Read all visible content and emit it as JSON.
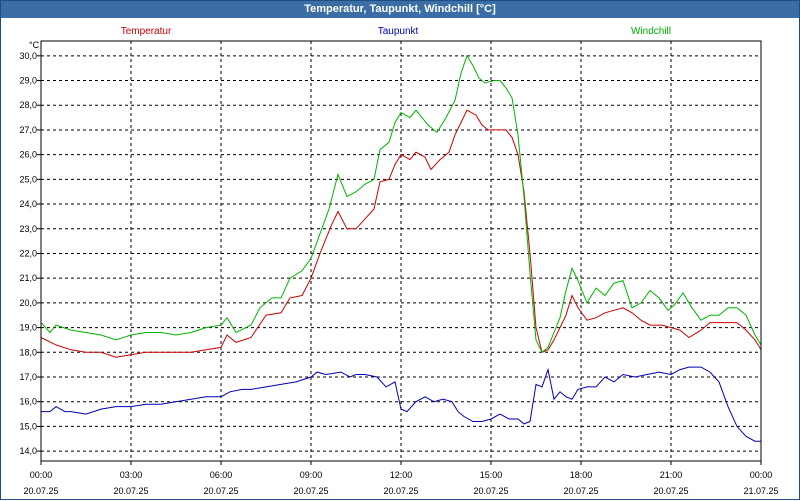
{
  "window": {
    "title": "Temperatur, Taupunkt, Windchill [°C]"
  },
  "chart_data": {
    "type": "line",
    "title": "Temperatur, Taupunkt, Windchill [°C]",
    "ylabel": "°C",
    "ylim": [
      13.6,
      30.6
    ],
    "yticks": [
      "14,0",
      "15,0",
      "16,0",
      "17,0",
      "18,0",
      "19,0",
      "20,0",
      "21,0",
      "22,0",
      "23,0",
      "24,0",
      "25,0",
      "26,0",
      "27,0",
      "28,0",
      "29,0",
      "30,0"
    ],
    "xlim": [
      0,
      24
    ],
    "xticks": [
      {
        "time": "00:00",
        "date": "20.07.25"
      },
      {
        "time": "03:00",
        "date": "20.07.25"
      },
      {
        "time": "06:00",
        "date": "20.07.25"
      },
      {
        "time": "09:00",
        "date": "20.07.25"
      },
      {
        "time": "12:00",
        "date": "20.07.25"
      },
      {
        "time": "15:00",
        "date": "20.07.25"
      },
      {
        "time": "18:00",
        "date": "20.07.25"
      },
      {
        "time": "21:00",
        "date": "20.07.25"
      },
      {
        "time": "00:00",
        "date": "21.07.25"
      }
    ],
    "grid": true,
    "series": [
      {
        "name": "Temperatur",
        "color": "#cc0000",
        "points": [
          [
            0,
            18.6
          ],
          [
            0.5,
            18.3
          ],
          [
            1,
            18.1
          ],
          [
            1.5,
            18.0
          ],
          [
            2,
            18.0
          ],
          [
            2.5,
            17.8
          ],
          [
            3,
            17.9
          ],
          [
            3.5,
            18.0
          ],
          [
            4,
            18.0
          ],
          [
            4.5,
            18.0
          ],
          [
            5,
            18.0
          ],
          [
            5.5,
            18.1
          ],
          [
            6,
            18.2
          ],
          [
            6.2,
            18.7
          ],
          [
            6.5,
            18.4
          ],
          [
            7,
            18.6
          ],
          [
            7.5,
            19.5
          ],
          [
            8,
            19.6
          ],
          [
            8.3,
            20.2
          ],
          [
            8.7,
            20.3
          ],
          [
            9,
            21.0
          ],
          [
            9.3,
            22.0
          ],
          [
            9.5,
            22.6
          ],
          [
            9.7,
            23.2
          ],
          [
            9.9,
            23.7
          ],
          [
            10.2,
            23.0
          ],
          [
            10.5,
            23.0
          ],
          [
            10.8,
            23.4
          ],
          [
            11.1,
            23.8
          ],
          [
            11.3,
            24.9
          ],
          [
            11.6,
            25.0
          ],
          [
            11.8,
            25.6
          ],
          [
            12.0,
            26.0
          ],
          [
            12.3,
            25.8
          ],
          [
            12.5,
            26.1
          ],
          [
            12.8,
            25.9
          ],
          [
            13.0,
            25.4
          ],
          [
            13.3,
            25.8
          ],
          [
            13.6,
            26.1
          ],
          [
            13.8,
            26.8
          ],
          [
            14.0,
            27.3
          ],
          [
            14.2,
            27.8
          ],
          [
            14.5,
            27.6
          ],
          [
            14.7,
            27.2
          ],
          [
            14.9,
            27.0
          ],
          [
            15.2,
            27.0
          ],
          [
            15.5,
            27.0
          ],
          [
            15.7,
            26.7
          ],
          [
            15.9,
            26.0
          ],
          [
            16.1,
            24.5
          ],
          [
            16.3,
            22.0
          ],
          [
            16.5,
            19.0
          ],
          [
            16.7,
            18.0
          ],
          [
            16.9,
            18.1
          ],
          [
            17.1,
            18.5
          ],
          [
            17.3,
            19.0
          ],
          [
            17.5,
            19.5
          ],
          [
            17.7,
            20.3
          ],
          [
            17.9,
            19.8
          ],
          [
            18.2,
            19.3
          ],
          [
            18.5,
            19.4
          ],
          [
            18.8,
            19.6
          ],
          [
            19.1,
            19.7
          ],
          [
            19.4,
            19.8
          ],
          [
            19.7,
            19.6
          ],
          [
            20.0,
            19.3
          ],
          [
            20.3,
            19.1
          ],
          [
            20.7,
            19.1
          ],
          [
            21.0,
            19.0
          ],
          [
            21.3,
            18.9
          ],
          [
            21.6,
            18.6
          ],
          [
            22.0,
            18.9
          ],
          [
            22.3,
            19.2
          ],
          [
            22.6,
            19.2
          ],
          [
            22.9,
            19.2
          ],
          [
            23.2,
            19.2
          ],
          [
            23.5,
            18.9
          ],
          [
            23.8,
            18.5
          ],
          [
            24.0,
            18.1
          ]
        ]
      },
      {
        "name": "Taupunkt",
        "color": "#0000b4",
        "points": [
          [
            0,
            15.6
          ],
          [
            0.3,
            15.6
          ],
          [
            0.5,
            15.8
          ],
          [
            0.8,
            15.6
          ],
          [
            1,
            15.6
          ],
          [
            1.5,
            15.5
          ],
          [
            2,
            15.7
          ],
          [
            2.5,
            15.8
          ],
          [
            3,
            15.8
          ],
          [
            3.5,
            15.9
          ],
          [
            4,
            15.9
          ],
          [
            4.5,
            16.0
          ],
          [
            5,
            16.1
          ],
          [
            5.5,
            16.2
          ],
          [
            6,
            16.2
          ],
          [
            6.3,
            16.4
          ],
          [
            6.7,
            16.5
          ],
          [
            7,
            16.5
          ],
          [
            7.5,
            16.6
          ],
          [
            8,
            16.7
          ],
          [
            8.5,
            16.8
          ],
          [
            9,
            17.0
          ],
          [
            9.2,
            17.2
          ],
          [
            9.5,
            17.1
          ],
          [
            10,
            17.2
          ],
          [
            10.3,
            17.0
          ],
          [
            10.5,
            17.1
          ],
          [
            10.8,
            17.1
          ],
          [
            11.2,
            17.0
          ],
          [
            11.5,
            16.6
          ],
          [
            11.8,
            16.8
          ],
          [
            12.0,
            15.7
          ],
          [
            12.2,
            15.6
          ],
          [
            12.5,
            16.0
          ],
          [
            12.8,
            16.2
          ],
          [
            13.1,
            16.0
          ],
          [
            13.4,
            16.1
          ],
          [
            13.7,
            16.0
          ],
          [
            13.9,
            15.6
          ],
          [
            14.1,
            15.4
          ],
          [
            14.4,
            15.2
          ],
          [
            14.7,
            15.2
          ],
          [
            15.0,
            15.3
          ],
          [
            15.3,
            15.5
          ],
          [
            15.6,
            15.3
          ],
          [
            15.9,
            15.3
          ],
          [
            16.1,
            15.1
          ],
          [
            16.3,
            15.2
          ],
          [
            16.5,
            16.7
          ],
          [
            16.7,
            16.6
          ],
          [
            16.9,
            17.3
          ],
          [
            17.1,
            16.1
          ],
          [
            17.3,
            16.4
          ],
          [
            17.5,
            16.2
          ],
          [
            17.7,
            16.1
          ],
          [
            17.9,
            16.5
          ],
          [
            18.2,
            16.6
          ],
          [
            18.5,
            16.6
          ],
          [
            18.8,
            17.0
          ],
          [
            19.1,
            16.8
          ],
          [
            19.4,
            17.1
          ],
          [
            19.8,
            17.0
          ],
          [
            20.2,
            17.1
          ],
          [
            20.6,
            17.2
          ],
          [
            21.0,
            17.1
          ],
          [
            21.3,
            17.3
          ],
          [
            21.6,
            17.4
          ],
          [
            22.0,
            17.4
          ],
          [
            22.3,
            17.2
          ],
          [
            22.6,
            16.8
          ],
          [
            22.9,
            15.8
          ],
          [
            23.2,
            15.0
          ],
          [
            23.5,
            14.6
          ],
          [
            23.8,
            14.4
          ],
          [
            24.0,
            14.4
          ]
        ]
      },
      {
        "name": "Windchill",
        "color": "#00b400",
        "points": [
          [
            0,
            19.2
          ],
          [
            0.3,
            18.8
          ],
          [
            0.5,
            19.1
          ],
          [
            1,
            18.9
          ],
          [
            1.5,
            18.8
          ],
          [
            2,
            18.7
          ],
          [
            2.5,
            18.5
          ],
          [
            3,
            18.7
          ],
          [
            3.5,
            18.8
          ],
          [
            4,
            18.8
          ],
          [
            4.5,
            18.7
          ],
          [
            5,
            18.8
          ],
          [
            5.5,
            19.0
          ],
          [
            6,
            19.1
          ],
          [
            6.2,
            19.4
          ],
          [
            6.5,
            18.8
          ],
          [
            7,
            19.1
          ],
          [
            7.3,
            19.8
          ],
          [
            7.7,
            20.2
          ],
          [
            8,
            20.2
          ],
          [
            8.3,
            21.0
          ],
          [
            8.7,
            21.3
          ],
          [
            9,
            21.8
          ],
          [
            9.3,
            22.8
          ],
          [
            9.6,
            23.8
          ],
          [
            9.9,
            25.2
          ],
          [
            10.2,
            24.3
          ],
          [
            10.5,
            24.5
          ],
          [
            10.8,
            24.8
          ],
          [
            11.1,
            25.0
          ],
          [
            11.3,
            26.2
          ],
          [
            11.6,
            26.5
          ],
          [
            11.8,
            27.3
          ],
          [
            12.0,
            27.7
          ],
          [
            12.3,
            27.5
          ],
          [
            12.5,
            27.8
          ],
          [
            12.7,
            27.5
          ],
          [
            12.9,
            27.2
          ],
          [
            13.2,
            26.9
          ],
          [
            13.5,
            27.5
          ],
          [
            13.8,
            28.2
          ],
          [
            14.0,
            29.3
          ],
          [
            14.2,
            30.0
          ],
          [
            14.4,
            29.6
          ],
          [
            14.6,
            29.1
          ],
          [
            14.8,
            28.9
          ],
          [
            15.1,
            29.0
          ],
          [
            15.3,
            29.0
          ],
          [
            15.5,
            28.7
          ],
          [
            15.7,
            28.3
          ],
          [
            15.9,
            26.8
          ],
          [
            16.1,
            24.3
          ],
          [
            16.3,
            21.2
          ],
          [
            16.5,
            18.5
          ],
          [
            16.7,
            18.0
          ],
          [
            16.9,
            18.2
          ],
          [
            17.1,
            18.8
          ],
          [
            17.3,
            19.4
          ],
          [
            17.5,
            20.5
          ],
          [
            17.7,
            21.4
          ],
          [
            17.9,
            20.9
          ],
          [
            18.2,
            20.0
          ],
          [
            18.5,
            20.6
          ],
          [
            18.8,
            20.3
          ],
          [
            19.1,
            20.8
          ],
          [
            19.4,
            20.9
          ],
          [
            19.7,
            19.8
          ],
          [
            20.0,
            20.0
          ],
          [
            20.3,
            20.5
          ],
          [
            20.6,
            20.2
          ],
          [
            20.9,
            19.7
          ],
          [
            21.1,
            19.9
          ],
          [
            21.4,
            20.4
          ],
          [
            21.7,
            19.8
          ],
          [
            22.0,
            19.3
          ],
          [
            22.3,
            19.5
          ],
          [
            22.6,
            19.5
          ],
          [
            22.9,
            19.8
          ],
          [
            23.2,
            19.8
          ],
          [
            23.5,
            19.5
          ],
          [
            23.8,
            18.7
          ],
          [
            24.0,
            18.3
          ]
        ]
      }
    ]
  }
}
